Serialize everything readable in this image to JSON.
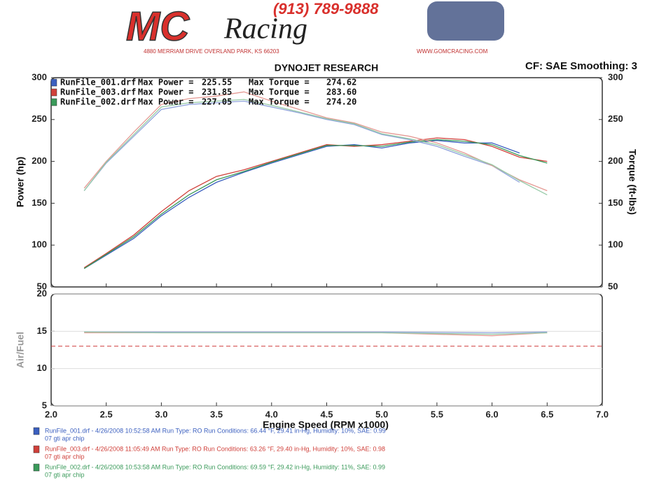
{
  "header": {
    "logo_mc": "MC",
    "logo_racing": "Racing",
    "phone": "(913) 789-9888",
    "address": "4880 MERRIAM DRIVE   OVERLAND PARK, KS 66203",
    "url": "WWW.GOMCRACING.COM"
  },
  "legend": [
    {
      "file": "RunFile_001.drf",
      "power_label": "Max Power =",
      "max_power": "225.55",
      "torque_label": "Max Torque =",
      "max_torque": "274.62",
      "color": "#3b5fbf"
    },
    {
      "file": "RunFile_003.drf",
      "power_label": "Max Power =",
      "max_power": "231.85",
      "torque_label": "Max Torque =",
      "max_torque": "283.60",
      "color": "#d0403a"
    },
    {
      "file": "RunFile_002.drf",
      "power_label": "Max Power =",
      "max_power": "227.05",
      "torque_label": "Max Torque =",
      "max_torque": "274.20",
      "color": "#3a9a5a"
    }
  ],
  "footer": [
    {
      "line": "RunFile_001.drf - 4/26/2008 10:52:58 AM   Run Type: RO   Run Conditions: 66.44 °F, 29.41 in-Hg,  Humidity: 10%, SAE: 0.99",
      "note": "07 gti apr chip",
      "color": "#3b5fbf"
    },
    {
      "line": "RunFile_003.drf - 4/26/2008 11:05:49 AM   Run Type: RO   Run Conditions: 63.26 °F, 29.40 in-Hg,  Humidity: 10%, SAE: 0.98",
      "note": "07 gti apr chip",
      "color": "#d0403a"
    },
    {
      "line": "RunFile_002.drf - 4/26/2008 10:53:58 AM   Run Type: RO   Run Conditions: 69.59 °F, 29.42 in-Hg,  Humidity: 11%, SAE: 0.99",
      "note": "07 gti apr chip",
      "color": "#3a9a5a"
    }
  ],
  "chart_data": [
    {
      "type": "line",
      "title": "DYNOJET RESEARCH",
      "subtitle": "CF: SAE  Smoothing: 3",
      "ylabel": "Power (hp)",
      "y2label": "Torque (ft-lbs)",
      "x": [
        2.3,
        2.5,
        2.75,
        3.0,
        3.25,
        3.5,
        3.75,
        4.0,
        4.25,
        4.5,
        4.75,
        5.0,
        5.25,
        5.5,
        5.75,
        6.0,
        6.25,
        6.5
      ],
      "xlim": [
        2.0,
        7.0
      ],
      "ylim": [
        50,
        300
      ],
      "yticks": [
        50,
        100,
        150,
        200,
        250,
        300
      ],
      "y2lim": [
        50,
        300
      ],
      "y2ticks": [
        50,
        100,
        150,
        200,
        250,
        300
      ],
      "series": [
        {
          "color": "#3b5fbf",
          "values": [
            72,
            88,
            108,
            135,
            157,
            175,
            187,
            198,
            208,
            218,
            220,
            216,
            222,
            225,
            222,
            222,
            210,
            null
          ]
        },
        {
          "color": "#d0403a",
          "values": [
            73,
            90,
            112,
            140,
            165,
            182,
            190,
            200,
            210,
            220,
            218,
            220,
            224,
            228,
            226,
            218,
            205,
            200
          ]
        },
        {
          "color": "#3a9a5a",
          "values": [
            72,
            89,
            110,
            137,
            160,
            178,
            188,
            199,
            209,
            219,
            219,
            218,
            223,
            226,
            224,
            220,
            207,
            198
          ]
        },
        {
          "color": "#8fa3dc",
          "axis": "y2",
          "values": [
            165,
            198,
            230,
            262,
            268,
            270,
            272,
            265,
            258,
            250,
            244,
            232,
            226,
            218,
            206,
            195,
            175,
            null
          ]
        },
        {
          "color": "#e59a94",
          "axis": "y2",
          "values": [
            168,
            200,
            235,
            268,
            275,
            278,
            283,
            272,
            262,
            252,
            246,
            235,
            230,
            222,
            210,
            195,
            178,
            165
          ]
        },
        {
          "color": "#95c9a6",
          "axis": "y2",
          "values": [
            165,
            199,
            232,
            265,
            270,
            272,
            274,
            267,
            259,
            251,
            245,
            233,
            227,
            220,
            208,
            196,
            177,
            160
          ]
        }
      ]
    },
    {
      "type": "line",
      "ylabel": "Air/Fuel",
      "xlabel": "Engine Speed (RPM x1000)",
      "x": [
        2.3,
        3.0,
        4.0,
        5.0,
        6.0,
        6.5
      ],
      "xlim": [
        2.0,
        7.0
      ],
      "xticks": [
        {
          "value": 2.0,
          "label": "2.0"
        },
        2.5,
        {
          "value": 3.0,
          "label": "3.0"
        },
        3.5,
        {
          "value": 4.0,
          "label": "4.0"
        },
        4.5,
        {
          "value": 5.0,
          "label": "5.0"
        },
        5.5,
        {
          "value": 6.0,
          "label": "6.0"
        },
        6.5,
        {
          "value": 7.0,
          "label": "7.0"
        }
      ],
      "ylim": [
        5,
        20
      ],
      "yticks": [
        5,
        10,
        15,
        20
      ],
      "grid": true,
      "reference_line": {
        "value": 13,
        "color": "#d04040"
      },
      "series": [
        {
          "color": "#8fa3dc",
          "values": [
            14.9,
            14.9,
            14.9,
            14.9,
            14.8,
            14.9
          ]
        },
        {
          "color": "#e59a94",
          "values": [
            14.8,
            14.8,
            14.8,
            14.8,
            14.4,
            14.8
          ]
        },
        {
          "color": "#95c9a6",
          "values": [
            14.9,
            14.8,
            14.8,
            14.8,
            14.6,
            14.8
          ]
        }
      ]
    }
  ]
}
